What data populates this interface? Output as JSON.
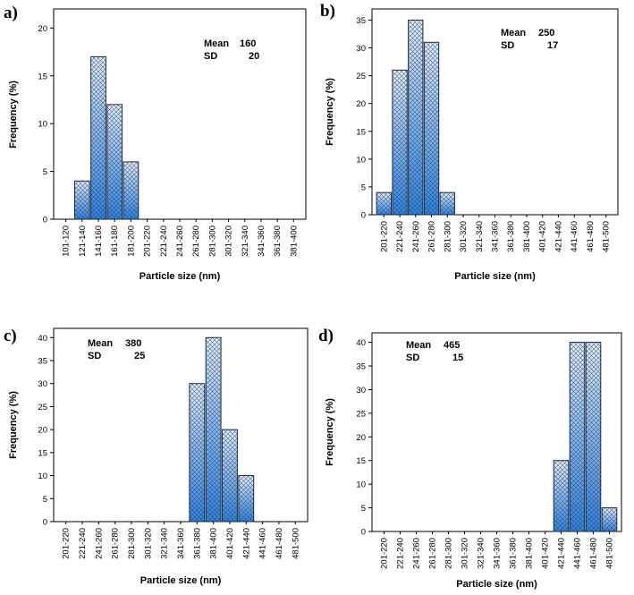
{
  "colors": {
    "bar_top": "#e6eef8",
    "bar_bottom": "#2f83de",
    "bar_hatch": "#1d3f70",
    "axis": "#000000"
  },
  "chart_data": [
    {
      "type": "bar",
      "panel": "a)",
      "categories": [
        "101-120",
        "121-140",
        "141-160",
        "161-180",
        "181-200",
        "201-220",
        "221-240",
        "241-260",
        "261-280",
        "281-300",
        "301-320",
        "321-340",
        "341-360",
        "361-380",
        "381-400"
      ],
      "values": [
        0,
        4,
        17,
        12,
        6,
        0,
        0,
        0,
        0,
        0,
        0,
        0,
        0,
        0,
        0
      ],
      "ylim": [
        0,
        22
      ],
      "yticks": [
        0,
        5,
        10,
        15,
        20
      ],
      "xlabel": "Particle size (nm)",
      "ylabel": "Frequency (%)",
      "mean_label": "Mean",
      "mean_value": "160",
      "sd_label": "SD",
      "sd_value": "20"
    },
    {
      "type": "bar",
      "panel": "b)",
      "categories": [
        "201-220",
        "221-240",
        "241-260",
        "261-280",
        "281-300",
        "301-320",
        "321-340",
        "341-360",
        "361-380",
        "381-400",
        "401-420",
        "421-440",
        "441-460",
        "461-480",
        "481-500"
      ],
      "values": [
        4,
        26,
        35,
        31,
        4,
        0,
        0,
        0,
        0,
        0,
        0,
        0,
        0,
        0,
        0
      ],
      "ylim": [
        0,
        37
      ],
      "yticks": [
        0,
        5,
        10,
        15,
        20,
        25,
        30,
        35
      ],
      "xlabel": "Particle size (nm)",
      "ylabel": "Frequency (%)",
      "mean_label": "Mean",
      "mean_value": "250",
      "sd_label": "SD",
      "sd_value": "17"
    },
    {
      "type": "bar",
      "panel": "c)",
      "categories": [
        "201-220",
        "221-240",
        "241-260",
        "261-280",
        "281-300",
        "301-320",
        "321-340",
        "341-360",
        "361-380",
        "381-400",
        "401-420",
        "421-440",
        "441-460",
        "461-480",
        "481-500"
      ],
      "values": [
        0,
        0,
        0,
        0,
        0,
        0,
        0,
        0,
        30,
        40,
        20,
        10,
        0,
        0,
        0
      ],
      "ylim": [
        0,
        42
      ],
      "yticks": [
        0,
        5,
        10,
        15,
        20,
        25,
        30,
        35,
        40
      ],
      "xlabel": "Particle size (nm)",
      "ylabel": "Frequency (%)",
      "mean_label": "Mean",
      "mean_value": "380",
      "sd_label": "SD",
      "sd_value": "25"
    },
    {
      "type": "bar",
      "panel": "d)",
      "categories": [
        "201-220",
        "221-240",
        "241-260",
        "261-280",
        "281-300",
        "301-320",
        "321-340",
        "341-360",
        "361-380",
        "381-400",
        "401-420",
        "421-440",
        "441-460",
        "461-480",
        "481-500"
      ],
      "values": [
        0,
        0,
        0,
        0,
        0,
        0,
        0,
        0,
        0,
        0,
        0,
        15,
        40,
        40,
        5
      ],
      "ylim": [
        0,
        42
      ],
      "yticks": [
        0,
        5,
        10,
        15,
        20,
        25,
        30,
        35,
        40
      ],
      "xlabel": "Particle size (nm)",
      "ylabel": "Frequency (%)",
      "mean_label": "Mean",
      "mean_value": "465",
      "sd_label": "SD",
      "sd_value": "15"
    }
  ]
}
